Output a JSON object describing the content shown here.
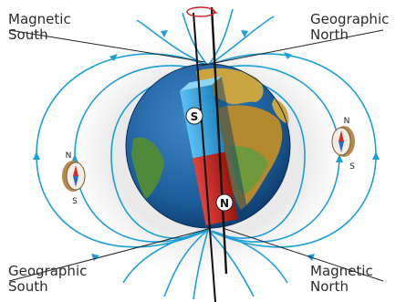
{
  "labels": {
    "magnetic_south": [
      "Magnetic",
      "South"
    ],
    "geographic_north": [
      "Geographic",
      "North"
    ],
    "geographic_south": [
      "Geographic",
      "South"
    ],
    "magnetic_north": [
      "Magnetic",
      "North"
    ]
  },
  "magnet": {
    "south_pole_letter": "S",
    "north_pole_letter": "N"
  },
  "compass_left": {
    "n": "N",
    "s": "S"
  },
  "compass_right": {
    "n": "N",
    "s": "S"
  },
  "colors": {
    "field_line": "#1a9fd8",
    "ocean": "#1c5e9c",
    "land": "#c9a441",
    "magnet_south": "#3aa6df",
    "magnet_north": "#c4231e",
    "axis": "#111111",
    "rotation_arrow": "#d11f1f"
  },
  "icons": [
    "rotation-arrow-icon",
    "compass-icon"
  ]
}
